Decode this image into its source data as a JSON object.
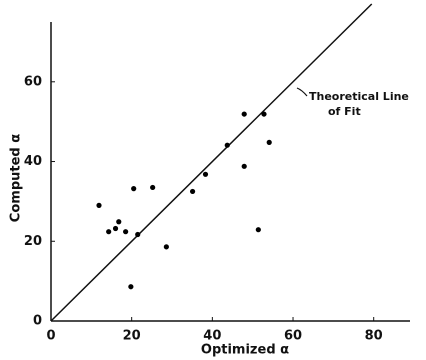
{
  "chart_data": {
    "type": "scatter",
    "x_label": "Optimized α",
    "y_label": "Computed α",
    "annotation": [
      "Theoretical Line",
      "of Fit"
    ],
    "x": [
      11.9,
      14.3,
      16.0,
      16.8,
      18.5,
      20.5,
      21.5,
      25.2,
      19.8,
      28.6,
      35.1,
      38.3,
      43.7,
      47.9,
      47.9,
      51.4,
      52.8,
      54.1
    ],
    "values": [
      29.0,
      22.4,
      23.2,
      24.9,
      22.4,
      33.2,
      21.7,
      33.5,
      8.6,
      18.6,
      32.5,
      36.8,
      44.1,
      51.9,
      38.8,
      22.9,
      51.9,
      44.8
    ],
    "color": "#000000",
    "xlim": [
      0,
      89
    ],
    "ylim": [
      0,
      75
    ],
    "xticks": [
      0,
      20,
      40,
      60,
      80
    ],
    "yticks": [
      0,
      20,
      40,
      60
    ]
  }
}
